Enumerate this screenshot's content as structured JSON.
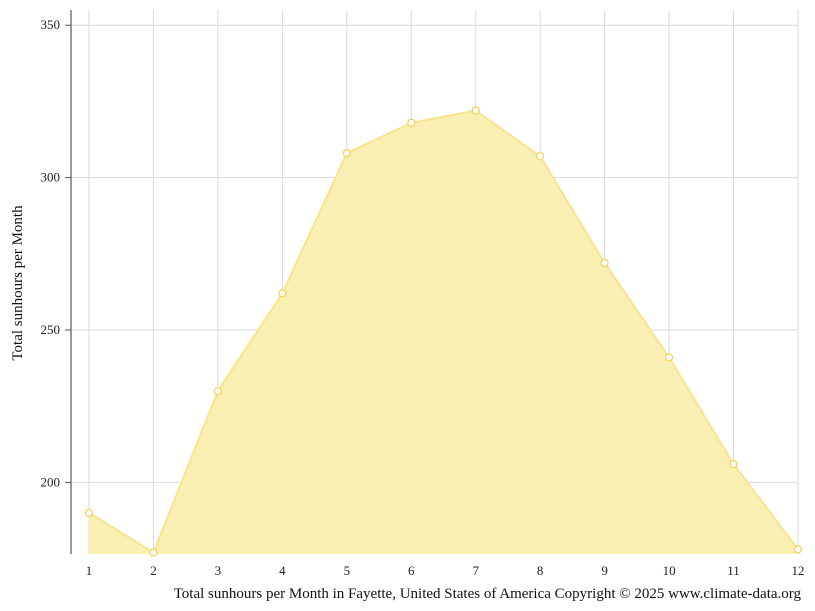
{
  "chart_data": {
    "type": "area",
    "title": "",
    "xlabel": "",
    "ylabel": "Total sunhours per Month",
    "caption": "Total sunhours per Month in Fayette, United States of America Copyright © 2025 www.climate-data.org",
    "x": [
      1,
      2,
      3,
      4,
      5,
      6,
      7,
      8,
      9,
      10,
      11,
      12
    ],
    "x_ticks": [
      "1",
      "2",
      "3",
      "4",
      "5",
      "6",
      "7",
      "8",
      "9",
      "10",
      "11",
      "12"
    ],
    "y_ticks": [
      200,
      250,
      300,
      350
    ],
    "ylim": [
      176.5,
      355
    ],
    "grid": true,
    "series": [
      {
        "values": [
          190,
          177,
          230,
          262,
          308,
          318,
          322,
          307,
          272,
          241,
          206,
          178
        ]
      }
    ],
    "colors": {
      "fill": "#f9eeae",
      "line": "#f7e48c",
      "marker_stroke": "#f2d35e",
      "marker_fill": "#ffffff",
      "grid": "#d9d9d9",
      "axis": "#555555"
    }
  }
}
